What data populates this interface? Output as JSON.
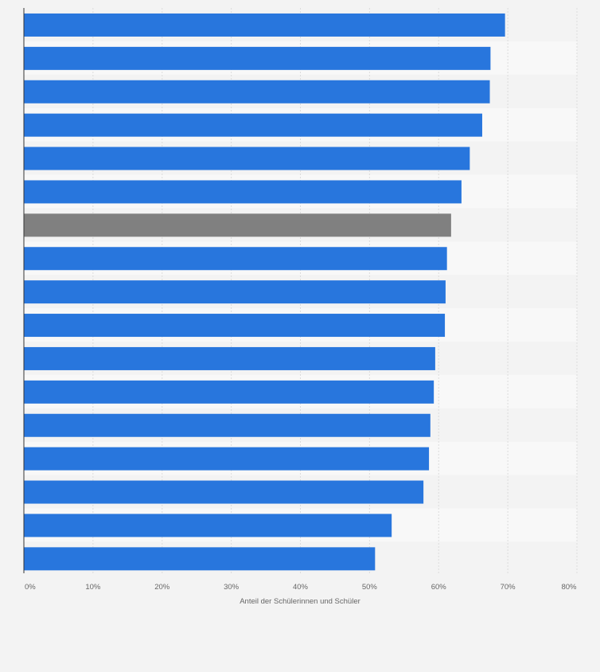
{
  "chart_data": {
    "type": "bar",
    "orientation": "horizontal",
    "title": "",
    "xlabel": "Anteil der Schülerinnen und Schüler",
    "ylabel": "",
    "xlim": [
      0,
      80
    ],
    "xtick_labels": [
      "0%",
      "10%",
      "20%",
      "30%",
      "40%",
      "50%",
      "60%",
      "70%",
      "80%"
    ],
    "categories": [
      "",
      "",
      "",
      "",
      "",
      "",
      "",
      "",
      "",
      "",
      "",
      "",
      "",
      "",
      "",
      "",
      ""
    ],
    "values": [
      69.6,
      67.5,
      67.4,
      66.3,
      64.5,
      63.3,
      61.8,
      61.2,
      61.0,
      60.9,
      59.5,
      59.3,
      58.8,
      58.6,
      57.8,
      53.2,
      50.8
    ],
    "highlight_index": 6,
    "colors": {
      "bar": "#2876dd",
      "highlight": "#808080",
      "band": "#f8f8f8",
      "background": "#f3f3f3",
      "grid": "#dcdcdc",
      "axis": "#333333",
      "tick_text": "#666666"
    },
    "grid": true
  }
}
